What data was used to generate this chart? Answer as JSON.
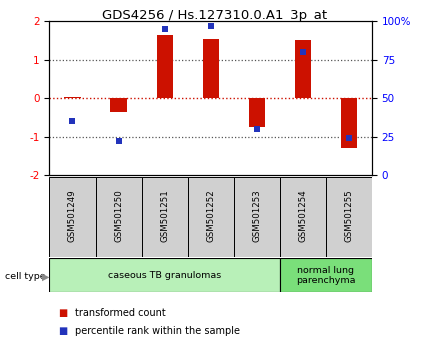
{
  "title": "GDS4256 / Hs.127310.0.A1_3p_at",
  "samples": [
    "GSM501249",
    "GSM501250",
    "GSM501251",
    "GSM501252",
    "GSM501253",
    "GSM501254",
    "GSM501255"
  ],
  "transformed_count": [
    0.02,
    -0.35,
    1.65,
    1.55,
    -0.75,
    1.52,
    -1.28
  ],
  "percentile_rank": [
    35,
    22,
    95,
    97,
    30,
    80,
    24
  ],
  "cell_type_ranges": [
    {
      "xstart": 0,
      "xend": 5,
      "color": "#b8f0b8",
      "label": "caseous TB granulomas"
    },
    {
      "xstart": 5,
      "xend": 7,
      "color": "#7adf7a",
      "label": "normal lung\nparenchyma"
    }
  ],
  "bar_color": "#cc1100",
  "dot_color": "#2233bb",
  "ylim_left": [
    -2,
    2
  ],
  "ylim_right": [
    0,
    100
  ],
  "yticks_left": [
    -2,
    -1,
    0,
    1,
    2
  ],
  "yticks_right": [
    0,
    25,
    50,
    75,
    100
  ],
  "ytick_labels_right": [
    "0",
    "25",
    "50",
    "75",
    "100%"
  ],
  "hlines_black": [
    -1,
    1
  ],
  "hline_red": 0,
  "zero_line_color": "#cc1100",
  "black_hline_color": "#555555",
  "background_color": "#ffffff",
  "sample_box_color": "#d0d0d0",
  "bar_width": 0.35,
  "dot_size": 18,
  "legend_items": [
    {
      "color": "#cc1100",
      "label": "transformed count"
    },
    {
      "color": "#2233bb",
      "label": "percentile rank within the sample"
    }
  ]
}
